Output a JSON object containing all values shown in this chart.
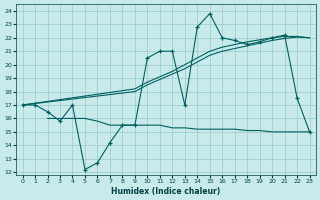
{
  "xlabel": "Humidex (Indice chaleur)",
  "background_color": "#c8eaea",
  "grid_color": "#9cc8c8",
  "line_color": "#006060",
  "xlim": [
    -0.5,
    23.5
  ],
  "ylim": [
    11.8,
    24.5
  ],
  "yticks": [
    12,
    13,
    14,
    15,
    16,
    17,
    18,
    19,
    20,
    21,
    22,
    23,
    24
  ],
  "xticks": [
    0,
    1,
    2,
    3,
    4,
    5,
    6,
    7,
    8,
    9,
    10,
    11,
    12,
    13,
    14,
    15,
    16,
    17,
    18,
    19,
    20,
    21,
    22,
    23
  ],
  "series1_x": [
    0,
    1,
    2,
    3,
    4,
    5,
    6,
    7,
    8,
    9,
    10,
    11,
    12,
    13,
    14,
    15,
    16,
    17,
    18,
    19,
    20,
    21,
    22,
    23
  ],
  "series1_y": [
    17,
    17,
    16.5,
    15.8,
    17,
    12.2,
    12.7,
    14.2,
    15.5,
    15.5,
    20.5,
    21.0,
    21.0,
    17.0,
    22.8,
    23.8,
    22.0,
    21.8,
    21.5,
    21.7,
    22.0,
    22.2,
    17.5,
    15.0
  ],
  "series2_x": [
    0,
    9,
    10,
    11,
    12,
    13,
    14,
    15,
    16,
    17,
    18,
    19,
    20,
    21,
    22,
    23
  ],
  "series2_y": [
    17,
    18.2,
    18.7,
    19.1,
    19.5,
    20.0,
    20.5,
    21.0,
    21.3,
    21.5,
    21.7,
    21.85,
    22.0,
    22.1,
    22.1,
    22.0
  ],
  "series3_x": [
    0,
    9,
    10,
    11,
    12,
    13,
    14,
    15,
    16,
    17,
    18,
    19,
    20,
    21,
    22,
    23
  ],
  "series3_y": [
    17,
    18.0,
    18.5,
    18.9,
    19.3,
    19.7,
    20.2,
    20.7,
    21.0,
    21.2,
    21.4,
    21.6,
    21.8,
    21.95,
    22.05,
    22.0
  ],
  "flat_x": [
    2,
    3,
    4,
    5,
    6,
    7,
    8,
    9,
    10,
    11,
    12,
    13,
    14,
    15,
    16,
    17,
    18,
    19,
    20,
    21,
    22,
    23
  ],
  "flat_y": [
    16.0,
    16.0,
    16.0,
    16.0,
    15.8,
    15.5,
    15.5,
    15.5,
    15.5,
    15.5,
    15.3,
    15.3,
    15.2,
    15.2,
    15.2,
    15.2,
    15.1,
    15.1,
    15.0,
    15.0,
    15.0,
    15.0
  ]
}
